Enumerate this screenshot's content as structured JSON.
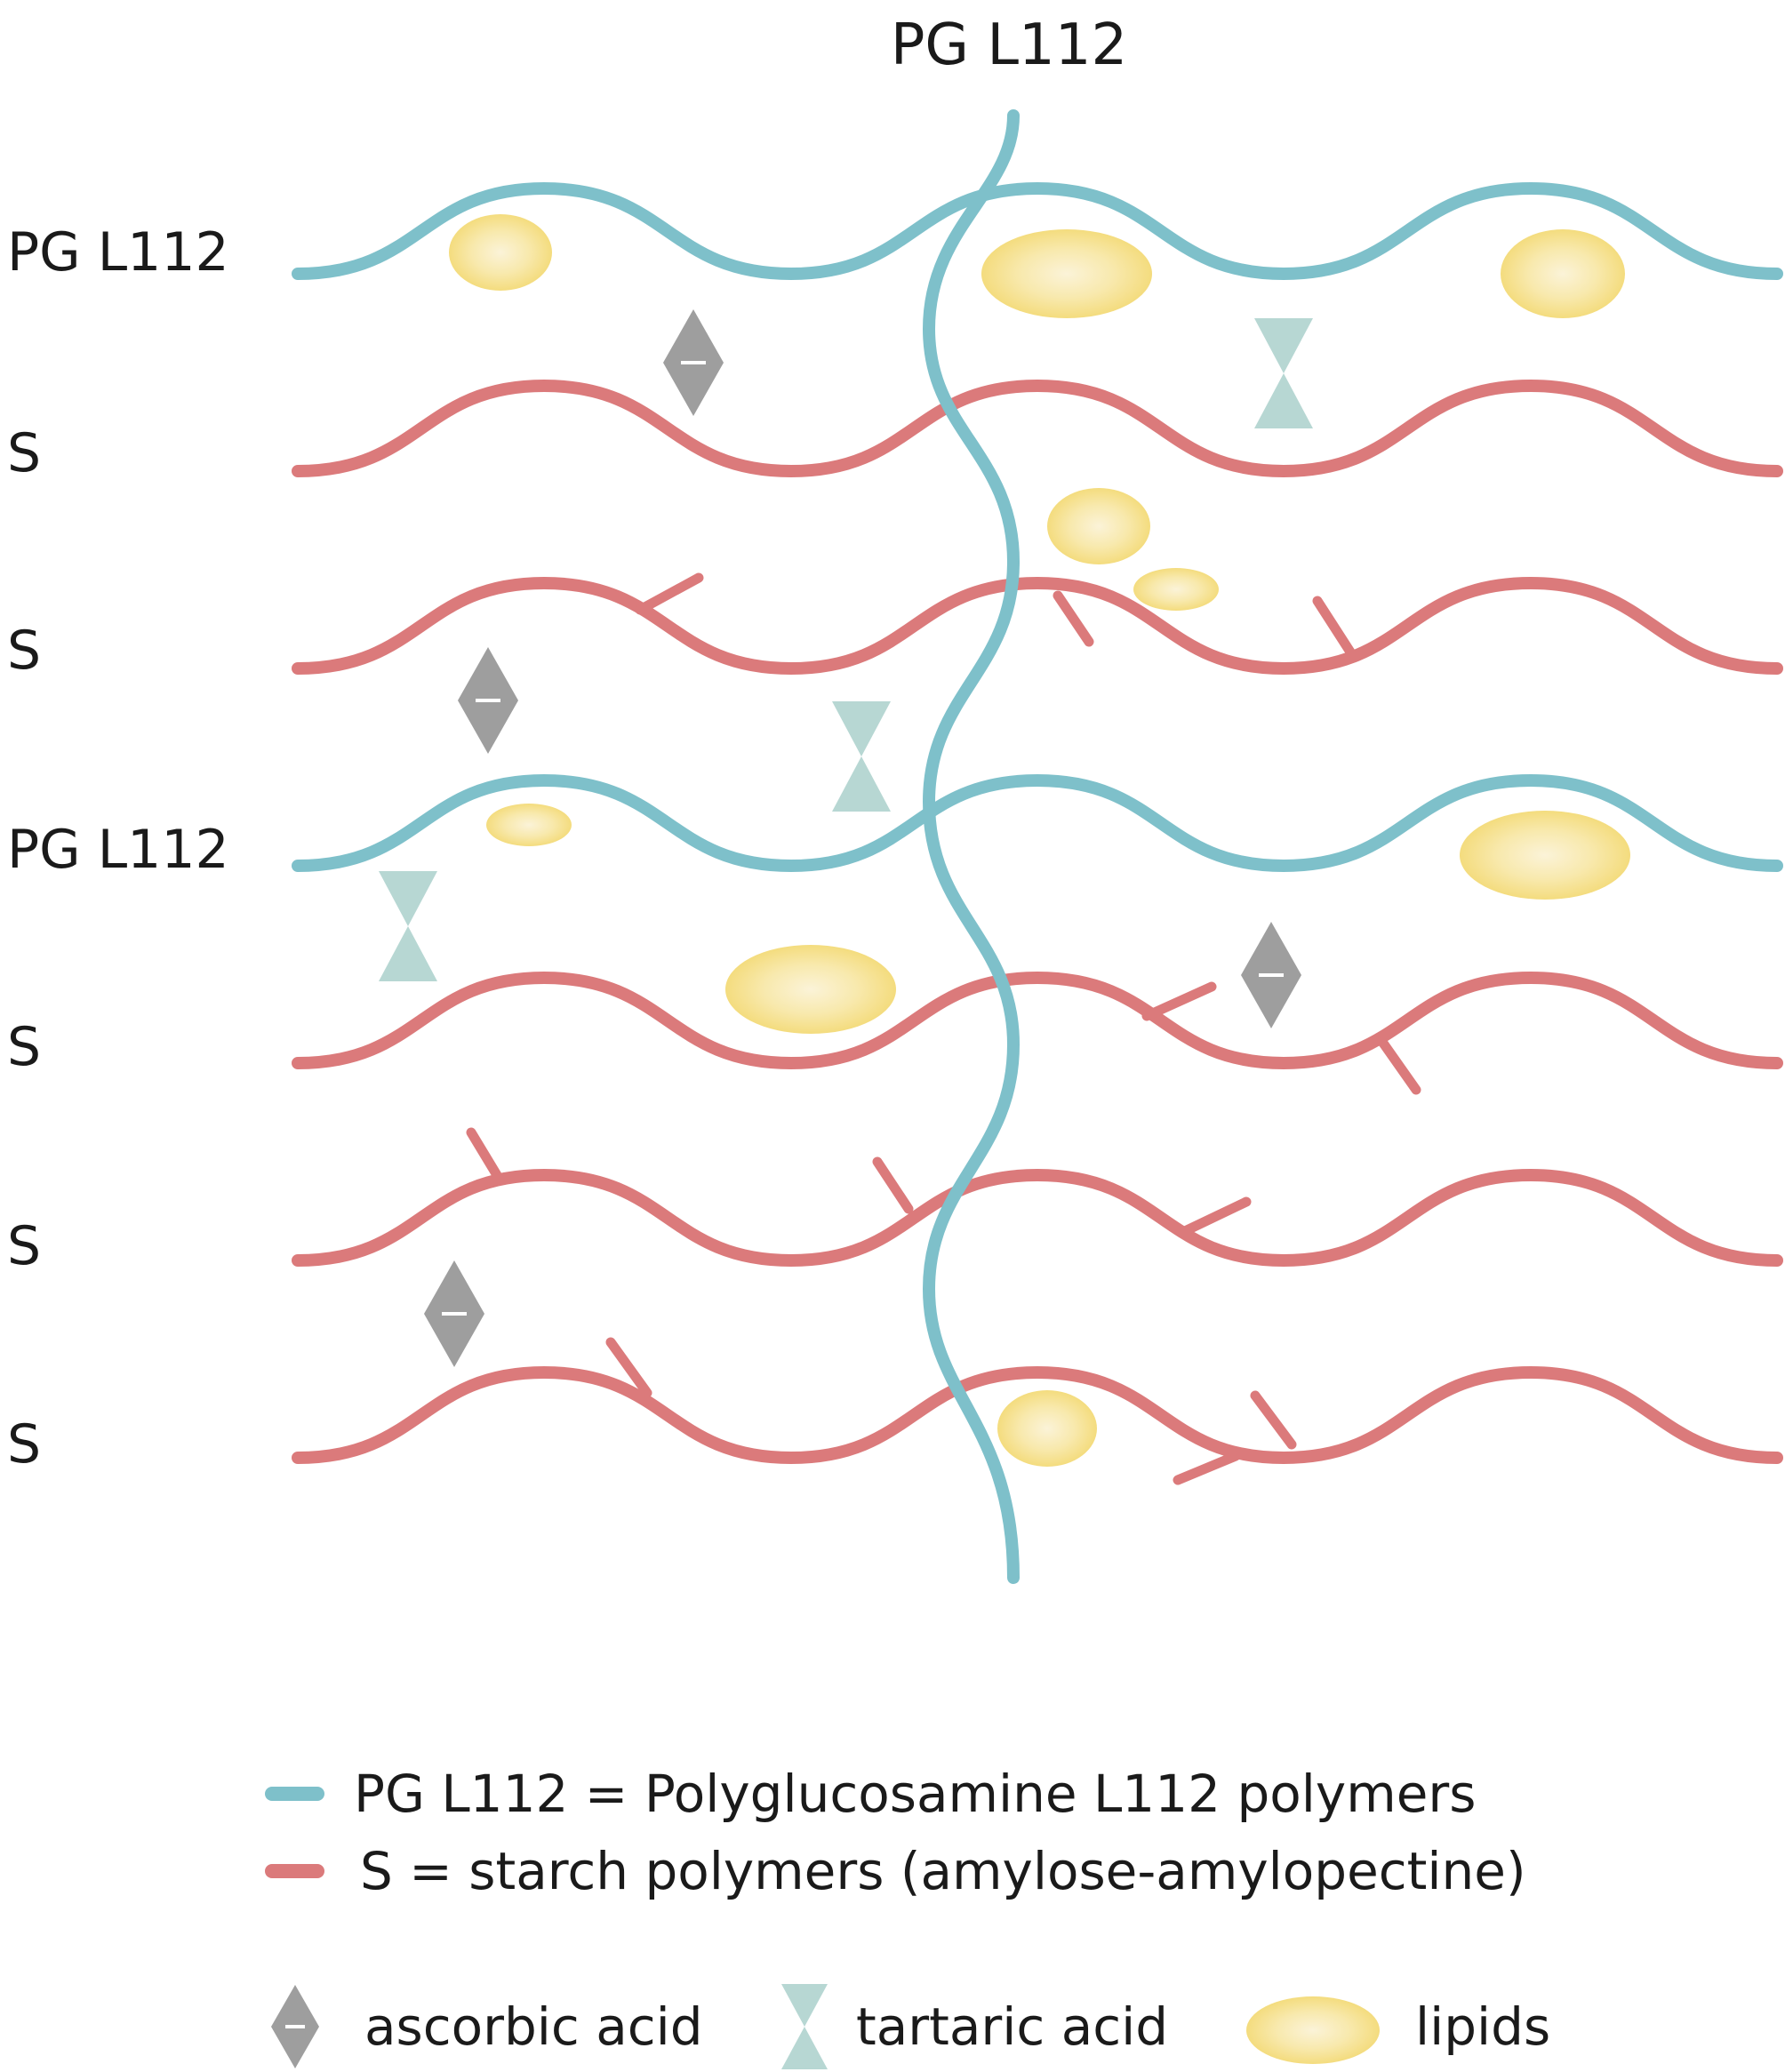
{
  "colors": {
    "pg": "#7ec0ca",
    "starch": "#db7a7b",
    "ascorbic": "#9e9e9e",
    "tartaric": "#b7d7d3",
    "lipid_outer": "#f4dc7e",
    "lipid_inner": "#fbf2d4",
    "text": "#1a1a1a"
  },
  "diagram": {
    "top_label": "PG L112",
    "chains": [
      {
        "type": "pg",
        "label": "PG L112"
      },
      {
        "type": "starch",
        "label": "S"
      },
      {
        "type": "starch",
        "label": "S"
      },
      {
        "type": "pg",
        "label": "PG L112"
      },
      {
        "type": "starch",
        "label": "S"
      },
      {
        "type": "starch",
        "label": "S"
      },
      {
        "type": "starch",
        "label": "S"
      }
    ]
  },
  "legend": {
    "lines": [
      {
        "type": "pg",
        "text": "PG L112 = Polyglucosamine L112 polymers"
      },
      {
        "type": "starch",
        "text": "S = starch polymers (amylose-amylopectine)"
      }
    ],
    "symbols": [
      {
        "icon": "ascorbic-acid-icon",
        "text": "ascorbic acid"
      },
      {
        "icon": "tartaric-acid-icon",
        "text": "tartaric acid"
      },
      {
        "icon": "lipid-icon",
        "text": "lipids"
      }
    ]
  }
}
